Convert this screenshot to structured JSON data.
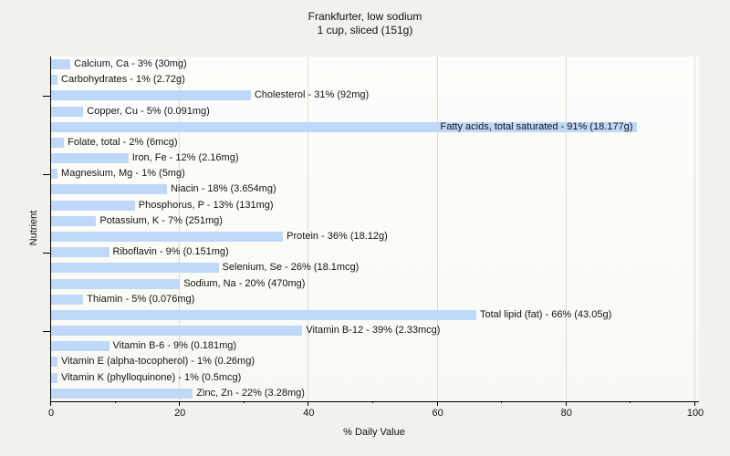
{
  "title": {
    "line1": "Frankfurter, low sodium",
    "line2": "1 cup, sliced (151g)"
  },
  "axes": {
    "x_label": "% Daily Value",
    "y_label": "Nutrient",
    "x_tick_labels": [
      "0",
      "20",
      "40",
      "60",
      "80",
      "100"
    ],
    "x_ticks": [
      0,
      20,
      40,
      60,
      80,
      100
    ],
    "x_minor_ticks": [
      10,
      30,
      50,
      70,
      90
    ],
    "gridlines": [
      20,
      40,
      60,
      80,
      100
    ],
    "y_tick_row_indices": [
      2,
      7,
      12,
      17
    ]
  },
  "colors": {
    "bar": "#BFD8FA",
    "figure_background": "#F2F1EC",
    "plot_background": "#FBFBF7",
    "gridline": "#DBDBD5",
    "axis": "#000000",
    "text": "#141414"
  },
  "chart_data": {
    "type": "bar",
    "orientation": "horizontal",
    "title": "Frankfurter, low sodium — 1 cup, sliced (151g)",
    "xlabel": "% Daily Value",
    "ylabel": "Nutrient",
    "xlim": [
      0,
      100
    ],
    "grid": "vertical",
    "bars": [
      {
        "nutrient": "Calcium, Ca",
        "percent": 3,
        "amount": "30mg",
        "label": "Calcium, Ca - 3% (30mg)"
      },
      {
        "nutrient": "Carbohydrates",
        "percent": 1,
        "amount": "2.72g",
        "label": "Carbohydrates - 1% (2.72g)"
      },
      {
        "nutrient": "Cholesterol",
        "percent": 31,
        "amount": "92mg",
        "label": "Cholesterol - 31% (92mg)"
      },
      {
        "nutrient": "Copper, Cu",
        "percent": 5,
        "amount": "0.091mg",
        "label": "Copper, Cu - 5% (0.091mg)"
      },
      {
        "nutrient": "Fatty acids, total saturated",
        "percent": 91,
        "amount": "18.177g",
        "label": "Fatty acids, total saturated - 91% (18.177g)",
        "label_inside": true
      },
      {
        "nutrient": "Folate, total",
        "percent": 2,
        "amount": "6mcg",
        "label": "Folate, total - 2% (6mcg)"
      },
      {
        "nutrient": "Iron, Fe",
        "percent": 12,
        "amount": "2.16mg",
        "label": "Iron, Fe - 12% (2.16mg)"
      },
      {
        "nutrient": "Magnesium, Mg",
        "percent": 1,
        "amount": "5mg",
        "label": "Magnesium, Mg - 1% (5mg)"
      },
      {
        "nutrient": "Niacin",
        "percent": 18,
        "amount": "3.654mg",
        "label": "Niacin - 18% (3.654mg)"
      },
      {
        "nutrient": "Phosphorus, P",
        "percent": 13,
        "amount": "131mg",
        "label": "Phosphorus, P - 13% (131mg)"
      },
      {
        "nutrient": "Potassium, K",
        "percent": 7,
        "amount": "251mg",
        "label": "Potassium, K - 7% (251mg)"
      },
      {
        "nutrient": "Protein",
        "percent": 36,
        "amount": "18.12g",
        "label": "Protein - 36% (18.12g)"
      },
      {
        "nutrient": "Riboflavin",
        "percent": 9,
        "amount": "0.151mg",
        "label": "Riboflavin - 9% (0.151mg)"
      },
      {
        "nutrient": "Selenium, Se",
        "percent": 26,
        "amount": "18.1mcg",
        "label": "Selenium, Se - 26% (18.1mcg)"
      },
      {
        "nutrient": "Sodium, Na",
        "percent": 20,
        "amount": "470mg",
        "label": "Sodium, Na - 20% (470mg)"
      },
      {
        "nutrient": "Thiamin",
        "percent": 5,
        "amount": "0.076mg",
        "label": "Thiamin - 5% (0.076mg)"
      },
      {
        "nutrient": "Total lipid (fat)",
        "percent": 66,
        "amount": "43.05g",
        "label": "Total lipid (fat) - 66% (43.05g)"
      },
      {
        "nutrient": "Vitamin B-12",
        "percent": 39,
        "amount": "2.33mcg",
        "label": "Vitamin B-12 - 39% (2.33mcg)"
      },
      {
        "nutrient": "Vitamin B-6",
        "percent": 9,
        "amount": "0.181mg",
        "label": "Vitamin B-6 - 9% (0.181mg)"
      },
      {
        "nutrient": "Vitamin E (alpha-tocopherol)",
        "percent": 1,
        "amount": "0.26mg",
        "label": "Vitamin E (alpha-tocopherol) - 1% (0.26mg)"
      },
      {
        "nutrient": "Vitamin K (phylloquinone)",
        "percent": 1,
        "amount": "0.5mcg",
        "label": "Vitamin K (phylloquinone) - 1% (0.5mcg)"
      },
      {
        "nutrient": "Zinc, Zn",
        "percent": 22,
        "amount": "3.28mg",
        "label": "Zinc, Zn - 22% (3.28mg)"
      }
    ]
  }
}
